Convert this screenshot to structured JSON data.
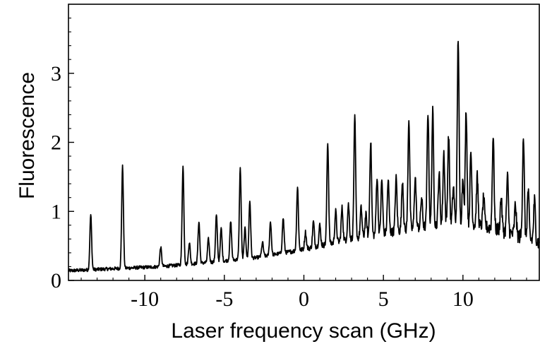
{
  "chart_data": {
    "type": "line",
    "title": "",
    "xlabel": "Laser frequency scan (GHz)",
    "ylabel": "Fluorescence",
    "xlim": [
      -14.8,
      14.8
    ],
    "ylim": [
      0,
      4.0
    ],
    "xticks": [
      -10,
      -5,
      0,
      5,
      10
    ],
    "xtick_labels": [
      "-10",
      "-5",
      "0",
      "5",
      "10"
    ],
    "yticks": [
      0,
      1,
      2,
      3
    ],
    "ytick_labels": [
      "0",
      "1",
      "2",
      "3"
    ],
    "grid": false,
    "series": [
      {
        "color": "#000000",
        "baseline": [
          [
            -14.8,
            0.14
          ],
          [
            -12.0,
            0.17
          ],
          [
            -9.0,
            0.2
          ],
          [
            -6.0,
            0.26
          ],
          [
            -3.0,
            0.33
          ],
          [
            0.0,
            0.45
          ],
          [
            3.0,
            0.6
          ],
          [
            6.0,
            0.72
          ],
          [
            9.5,
            0.85
          ],
          [
            12.0,
            0.75
          ],
          [
            14.8,
            0.55
          ]
        ],
        "peaks": [
          [
            -13.4,
            0.95
          ],
          [
            -11.4,
            1.65
          ],
          [
            -9.0,
            0.48
          ],
          [
            -7.6,
            1.65
          ],
          [
            -7.2,
            0.55
          ],
          [
            -6.6,
            0.85
          ],
          [
            -6.0,
            0.6
          ],
          [
            -5.5,
            0.95
          ],
          [
            -5.2,
            0.75
          ],
          [
            -4.6,
            0.85
          ],
          [
            -4.0,
            1.62
          ],
          [
            -3.7,
            0.75
          ],
          [
            -3.4,
            1.15
          ],
          [
            -2.6,
            0.55
          ],
          [
            -2.1,
            0.85
          ],
          [
            -1.3,
            0.9
          ],
          [
            -0.4,
            1.35
          ],
          [
            0.1,
            0.7
          ],
          [
            0.6,
            0.85
          ],
          [
            1.0,
            0.8
          ],
          [
            1.5,
            2.0
          ],
          [
            2.0,
            1.0
          ],
          [
            2.4,
            1.05
          ],
          [
            2.8,
            1.1
          ],
          [
            3.2,
            2.35
          ],
          [
            3.6,
            1.05
          ],
          [
            3.9,
            0.95
          ],
          [
            4.2,
            2.02
          ],
          [
            4.6,
            1.5
          ],
          [
            4.9,
            1.45
          ],
          [
            5.3,
            1.45
          ],
          [
            5.8,
            1.48
          ],
          [
            6.2,
            1.45
          ],
          [
            6.6,
            2.35
          ],
          [
            7.0,
            1.5
          ],
          [
            7.4,
            1.2
          ],
          [
            7.8,
            2.45
          ],
          [
            8.1,
            2.45
          ],
          [
            8.5,
            1.55
          ],
          [
            8.8,
            1.85
          ],
          [
            9.1,
            2.1
          ],
          [
            9.4,
            1.35
          ],
          [
            9.7,
            3.52
          ],
          [
            10.0,
            1.5
          ],
          [
            10.2,
            2.48
          ],
          [
            10.5,
            1.85
          ],
          [
            10.9,
            1.5
          ],
          [
            11.3,
            1.2
          ],
          [
            11.9,
            2.1
          ],
          [
            12.4,
            1.2
          ],
          [
            12.8,
            1.5
          ],
          [
            13.3,
            1.1
          ],
          [
            13.8,
            2.1
          ],
          [
            14.1,
            1.3
          ],
          [
            14.5,
            1.15
          ]
        ]
      }
    ]
  }
}
